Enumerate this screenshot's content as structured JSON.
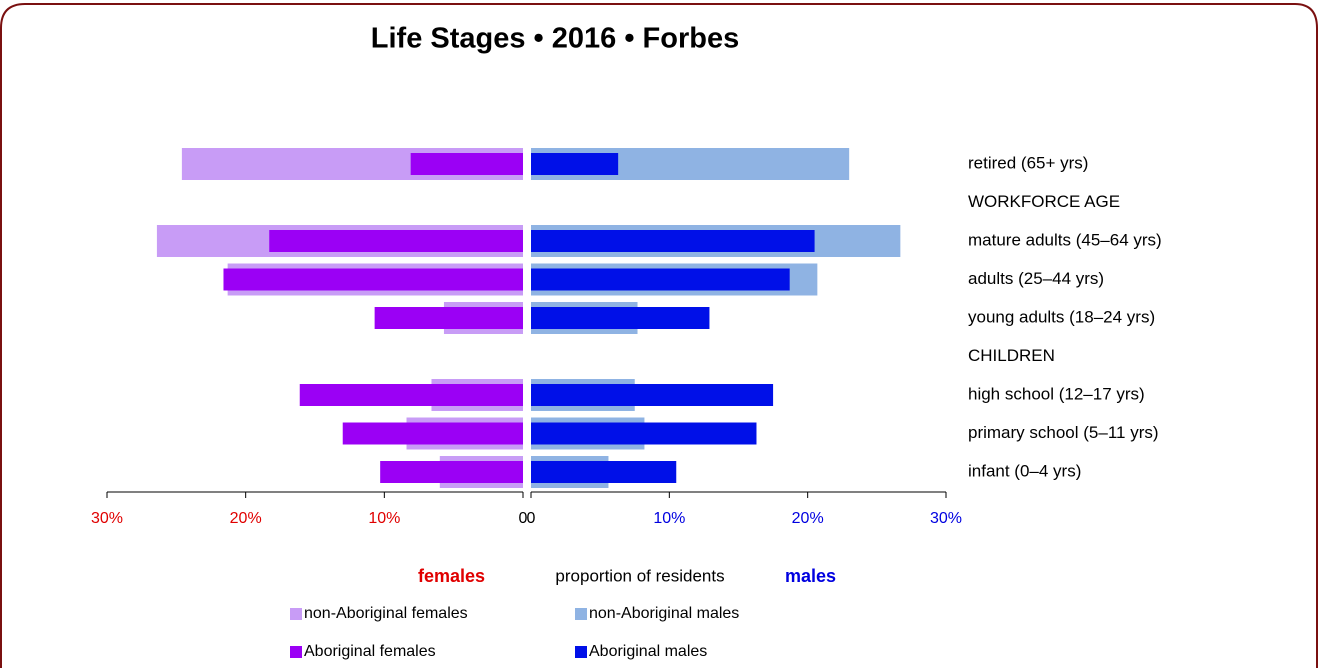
{
  "chart_data": {
    "type": "pyramid",
    "title": "Life Stages  •  2016  •  Forbes",
    "categories": [
      "retired (65+ yrs)",
      "WORKFORCE AGE",
      "mature adults (45–64 yrs)",
      "adults (25–44 yrs)",
      "young adults (18–24 yrs)",
      "CHILDREN",
      "high school (12–17 yrs)",
      "primary school (5–11 yrs)",
      "infant (0–4 yrs)"
    ],
    "series": [
      {
        "name": "non-Aboriginal females",
        "side": "female",
        "color": "#c89cf6",
        "values": [
          24.6,
          null,
          26.4,
          21.3,
          5.7,
          null,
          6.6,
          8.4,
          6.0
        ]
      },
      {
        "name": "non-Aboriginal males",
        "side": "male",
        "color": "#8fb3e3",
        "values": [
          23.0,
          null,
          26.7,
          20.7,
          7.7,
          null,
          7.5,
          8.2,
          5.6
        ]
      },
      {
        "name": "Aboriginal females",
        "side": "female",
        "color": "#9b00f5",
        "values": [
          8.1,
          null,
          18.3,
          21.6,
          10.7,
          null,
          16.1,
          13.0,
          10.3
        ]
      },
      {
        "name": "Aboriginal males",
        "side": "male",
        "color": "#0010e8",
        "values": [
          6.3,
          null,
          20.5,
          18.7,
          12.9,
          null,
          17.5,
          16.3,
          10.5
        ]
      }
    ],
    "xlim": [
      0,
      30
    ],
    "female_xticks": [
      {
        "value": 30,
        "label": "30%"
      },
      {
        "value": 20,
        "label": "20%"
      },
      {
        "value": 10,
        "label": "10%"
      },
      0
    ],
    "male_xticks": [
      0,
      {
        "value": 10,
        "label": "10%"
      },
      {
        "value": 20,
        "label": "20%"
      },
      {
        "value": 30,
        "label": "30%"
      }
    ],
    "female_label": "females",
    "x_label": "proportion of residents",
    "male_label": "males"
  }
}
